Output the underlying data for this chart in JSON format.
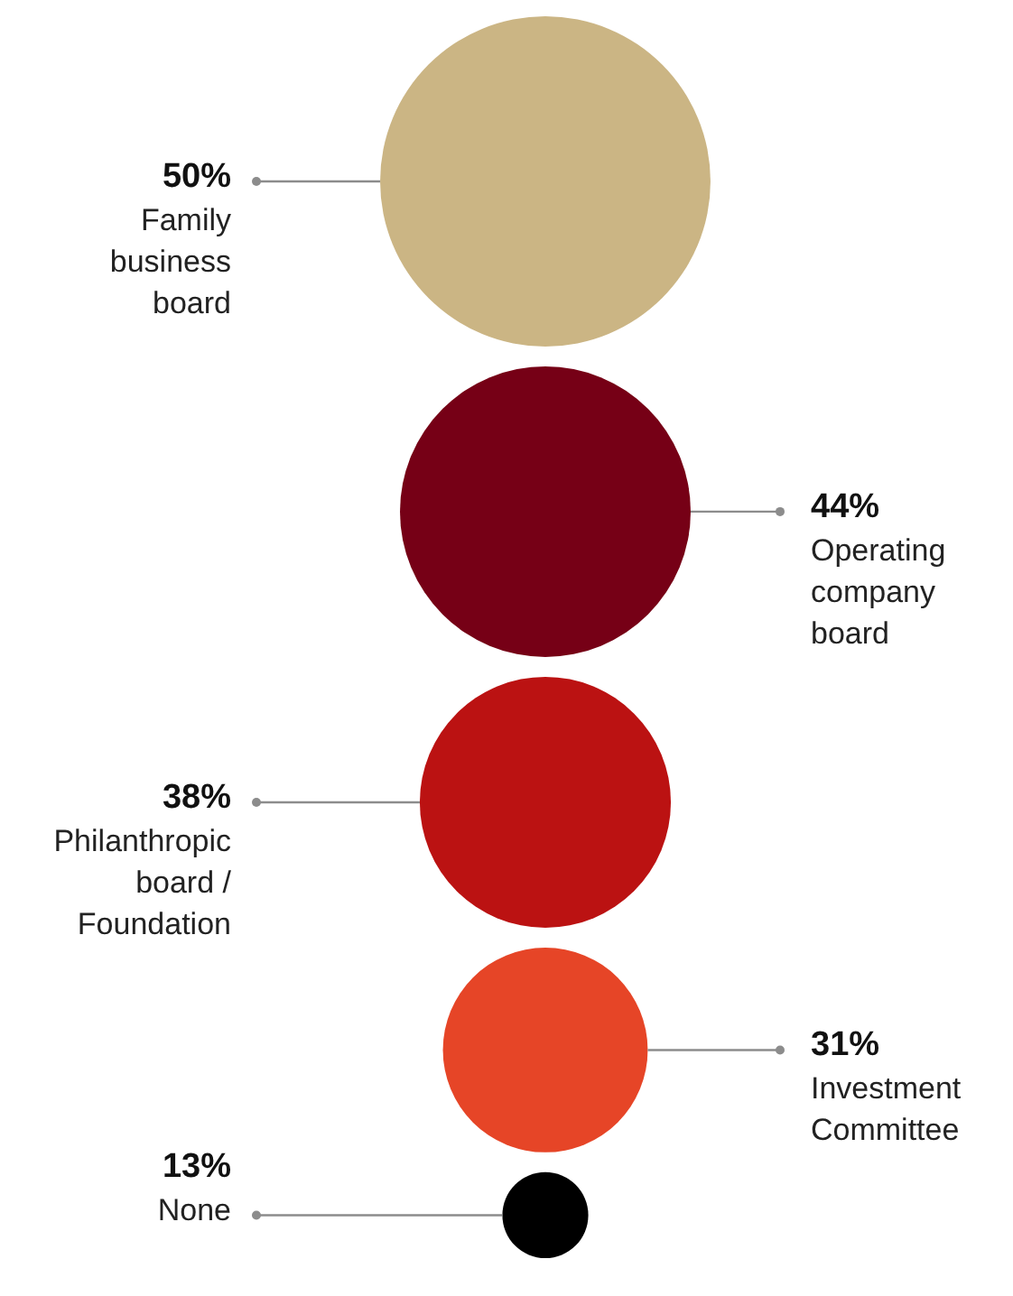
{
  "chart_data": {
    "type": "other",
    "categories": [
      "Family business board",
      "Operating company board",
      "Philanthropic board / Foundation",
      "Investment Committee",
      "None"
    ],
    "values": [
      50,
      44,
      38,
      31,
      13
    ],
    "value_labels": [
      "50%",
      "44%",
      "38%",
      "31%",
      "13%"
    ],
    "colors": [
      "#cbb584",
      "#760016",
      "#bb1212",
      "#e64527",
      "#000000"
    ],
    "data_labels": true
  }
}
